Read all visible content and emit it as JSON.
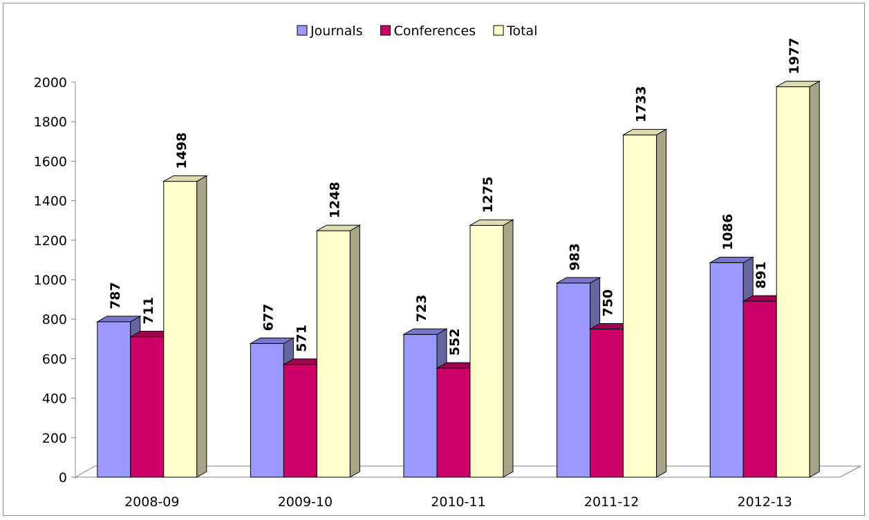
{
  "chart_data": {
    "type": "bar",
    "style": "3d-clustered",
    "categories": [
      "2008-09",
      "2009-10",
      "2010-11",
      "2011-12",
      "2012-13"
    ],
    "series": [
      {
        "name": "Journals",
        "values": [
          787,
          677,
          723,
          983,
          1086
        ],
        "color": "#9999ff",
        "side_color": "#66669f",
        "top_color": "#7777cc"
      },
      {
        "name": "Conferences",
        "values": [
          711,
          571,
          552,
          750,
          891
        ],
        "color": "#cc0066",
        "side_color": "#8a0044",
        "top_color": "#a00050"
      },
      {
        "name": "Total",
        "values": [
          1498,
          1248,
          1275,
          1733,
          1977
        ],
        "color": "#ffffcc",
        "side_color": "#a6a686",
        "top_color": "#dcdcb0"
      }
    ],
    "yticks": [
      "0",
      "200",
      "400",
      "600",
      "800",
      "1000",
      "1200",
      "1400",
      "1600",
      "1800",
      "2000"
    ],
    "ylim": [
      0,
      2000
    ],
    "legend_position": "top",
    "grid": false,
    "data_labels": true
  }
}
